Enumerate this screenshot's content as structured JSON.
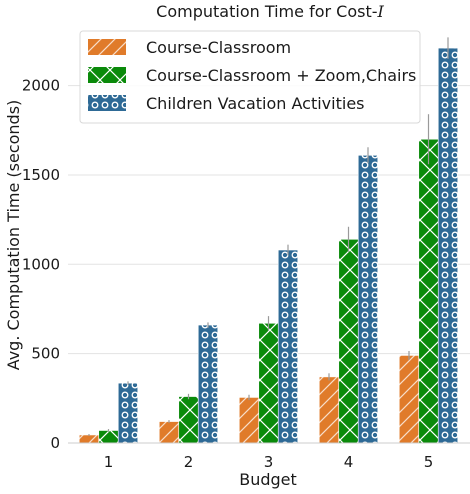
{
  "chart_data": {
    "type": "bar",
    "title_prefix": "Computation Time for Cost-",
    "title_math": "I",
    "xlabel": "Budget",
    "ylabel": "Avg. Computation Time (seconds)",
    "categories": [
      "1",
      "2",
      "3",
      "4",
      "5"
    ],
    "ylim": [
      0,
      2300
    ],
    "yticks": [
      0,
      500,
      1000,
      1500,
      2000
    ],
    "grid": "horizontal",
    "legend_position": "top-left",
    "series": [
      {
        "name": "Course-Classroom",
        "color": "#e07b2a",
        "hatch": "diagonal",
        "values": [
          45,
          120,
          255,
          370,
          490
        ],
        "errors": [
          5,
          8,
          15,
          20,
          25
        ]
      },
      {
        "name": "Course-Classroom + Zoom,Chairs",
        "color": "#0a8a0a",
        "hatch": "cross",
        "values": [
          70,
          260,
          670,
          1140,
          1700
        ],
        "errors": [
          8,
          15,
          40,
          70,
          140
        ]
      },
      {
        "name": "Children Vacation Activities",
        "color": "#2e6a96",
        "hatch": "circles",
        "values": [
          335,
          660,
          1080,
          1610,
          2210
        ],
        "errors": [
          10,
          15,
          30,
          45,
          60
        ]
      }
    ]
  }
}
